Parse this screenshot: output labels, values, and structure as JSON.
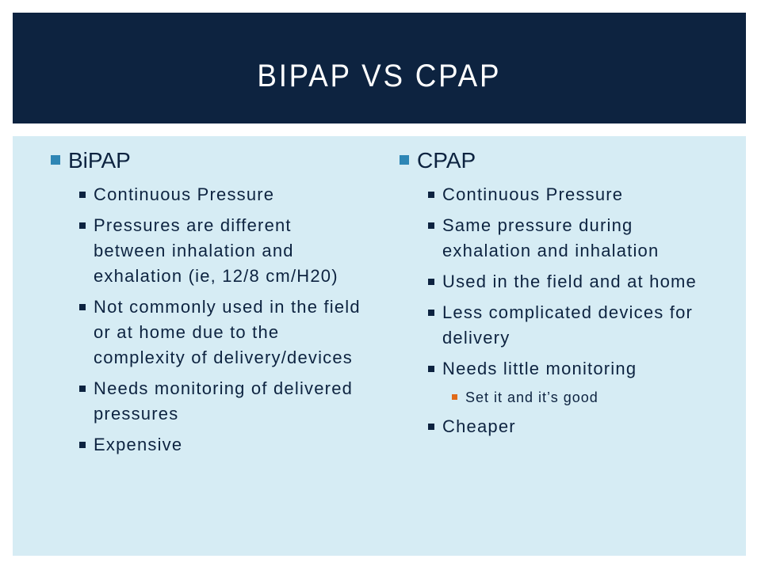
{
  "slide": {
    "title": "BIPAP VS CPAP"
  },
  "left": {
    "heading": "BiPAP",
    "items": [
      "Continuous Pressure",
      "Pressures are different between inhalation and exhalation (ie, 12/8 cm/H20)",
      "Not commonly used in the field or at home due to the complexity of delivery/devices",
      "Needs monitoring of delivered pressures",
      "Expensive"
    ]
  },
  "right": {
    "heading": "CPAP",
    "items": [
      "Continuous Pressure",
      "Same pressure during exhalation and inhalation",
      "Used in the field and at home",
      "Less complicated devices for delivery",
      "Needs little monitoring",
      "Cheaper"
    ],
    "subitem": "Set it and it’s good"
  },
  "colors": {
    "title_bg": "#0d2340",
    "content_bg": "#d6ecf4",
    "bullet_level1": "#2e86b5",
    "bullet_level3": "#e06a1a"
  }
}
